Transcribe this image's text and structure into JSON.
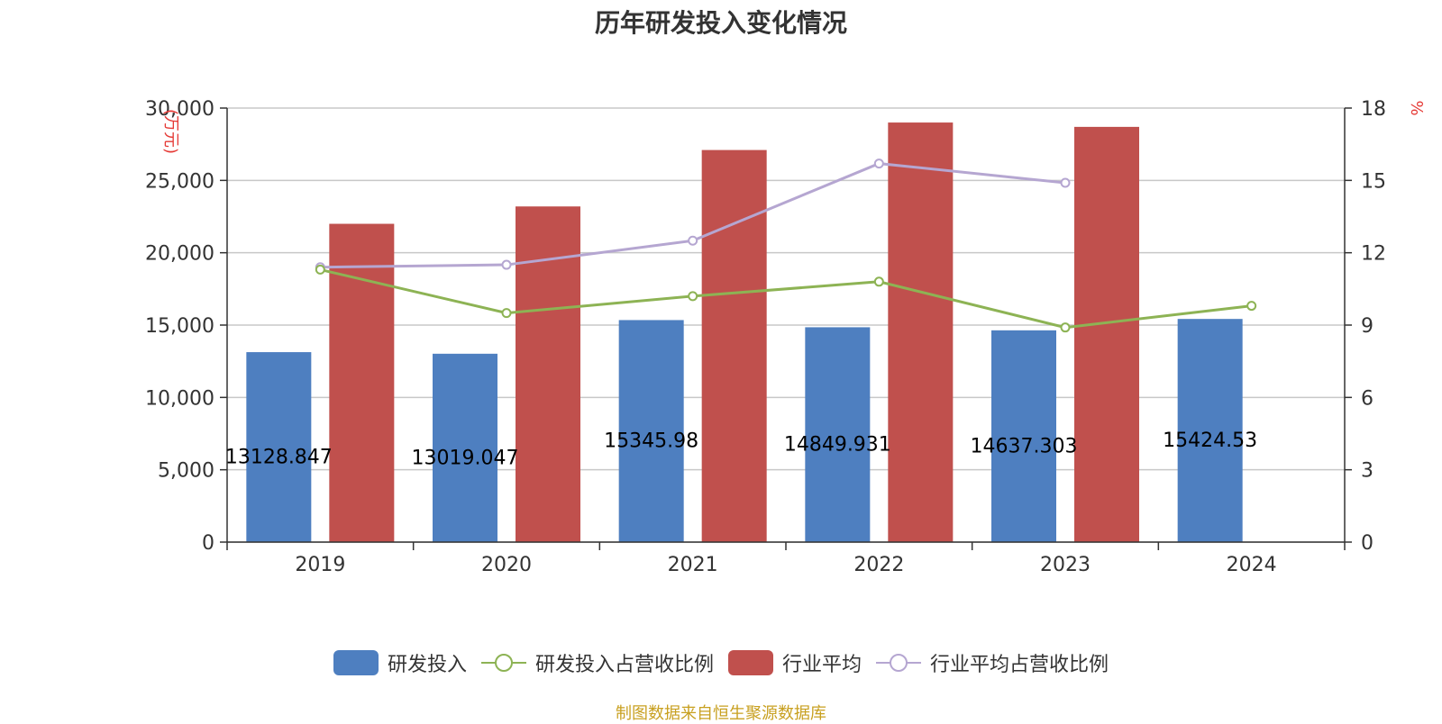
{
  "title": "历年研发投入变化情况",
  "source": "制图数据来自恒生聚源数据库",
  "colors": {
    "rd": "#4e7fc0",
    "industry": "#c0504d",
    "rd_ratio": "#8db354",
    "industry_ratio": "#b5a6d1",
    "grid": "#c8c8c8",
    "axis": "#333333"
  },
  "chart_data": {
    "type": "bar",
    "title": "历年研发投入变化情况",
    "categories": [
      "2019",
      "2020",
      "2021",
      "2022",
      "2023",
      "2024"
    ],
    "y_left": {
      "unit": "万元",
      "ylim": [
        0,
        30000
      ],
      "ticks": [
        0,
        5000,
        10000,
        15000,
        20000,
        25000,
        30000
      ],
      "tick_labels": [
        "0",
        "5,000",
        "10,000",
        "15,000",
        "20,000",
        "25,000",
        "30,000"
      ]
    },
    "y_right": {
      "unit": "%",
      "ylim": [
        0,
        18
      ],
      "ticks": [
        0,
        3,
        6,
        9,
        12,
        15,
        18
      ],
      "tick_labels": [
        "0",
        "3",
        "6",
        "9",
        "12",
        "15",
        "18"
      ]
    },
    "grid": true,
    "legend_position": "bottom",
    "series": [
      {
        "name": "研发投入",
        "type": "bar",
        "axis": "left",
        "values": [
          13128.847,
          13019.047,
          15345.98,
          14849.931,
          14637.303,
          15424.53
        ],
        "labels": [
          "13128.847",
          "13019.047",
          "15345.98",
          "14849.931",
          "14637.303",
          "15424.53"
        ]
      },
      {
        "name": "研发投入占营收比例",
        "type": "line",
        "axis": "right",
        "values": [
          11.3,
          9.5,
          10.2,
          10.8,
          8.9,
          9.8
        ]
      },
      {
        "name": "行业平均",
        "type": "bar",
        "axis": "left",
        "values": [
          22000,
          23200,
          27100,
          29000,
          28700,
          null
        ]
      },
      {
        "name": "行业平均占营收比例",
        "type": "line",
        "axis": "right",
        "values": [
          11.4,
          11.5,
          12.5,
          15.7,
          14.9,
          null
        ]
      }
    ]
  }
}
